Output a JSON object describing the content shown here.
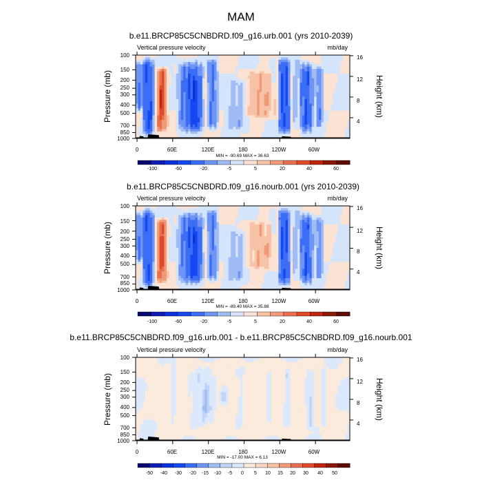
{
  "figure_title": "MAM",
  "chart_data": [
    {
      "type": "heatmap",
      "title": "b.e11.BRCP85C5CNBDRD.f09_g16.urb.001 (yrs 2010-2039)",
      "left_label": "Vertical pressure velocity",
      "right_label": "mb/day",
      "ylabel": "Pressure (mb)",
      "ylabel_right": "Height (km)",
      "x_ticks": [
        "0",
        "60E",
        "120E",
        "180",
        "120W",
        "60W"
      ],
      "y_ticks": [
        "100",
        "150",
        "200",
        "250",
        "300",
        "400",
        "500",
        "700",
        "850",
        "1000"
      ],
      "height_ticks": [
        "16",
        "12",
        "8",
        "4"
      ],
      "stats": "MIN = -90.69   MAX =  36.63",
      "min": -90.69,
      "max": 36.63,
      "colorbar_labels": [
        "-100",
        "-60",
        "-20",
        "-5",
        "5",
        "20",
        "40",
        "60"
      ],
      "colorbar_levels": [
        -100,
        -80,
        -60,
        -40,
        -20,
        -10,
        -5,
        0,
        5,
        10,
        20,
        30,
        40,
        50,
        60
      ],
      "terrain": [
        [
          6,
          14,
          0.6
        ],
        [
          20,
          40,
          1.0
        ],
        [
          245,
          262,
          0.5
        ]
      ],
      "features": [
        {
          "lon0": 10,
          "lon1": 32,
          "amp": -55,
          "y0": 0.0,
          "y1": 1.0,
          "f": 2,
          "w": 0.16
        },
        {
          "lon0": 0,
          "lon1": 12,
          "amp": -35,
          "y0": 0.05,
          "y1": 0.7,
          "f": 3,
          "w": 0.12
        },
        {
          "lon0": 33,
          "lon1": 55,
          "amp": 34,
          "y0": 0.12,
          "y1": 0.95,
          "f": 2,
          "w": 0.1
        },
        {
          "lon0": 38,
          "lon1": 50,
          "amp": 18,
          "y0": 0.35,
          "y1": 0.8,
          "f": 3,
          "w": 0.1
        },
        {
          "lon0": 68,
          "lon1": 118,
          "amp": -40,
          "y0": 0.02,
          "y1": 0.98,
          "f": 3,
          "w": 0.2
        },
        {
          "lon0": 88,
          "lon1": 112,
          "amp": -35,
          "y0": 0.2,
          "y1": 0.95,
          "f": 4,
          "w": 0.15
        },
        {
          "lon0": 118,
          "lon1": 140,
          "amp": -25,
          "y0": 0.02,
          "y1": 0.92,
          "f": 3,
          "w": 0.1
        },
        {
          "lon0": 148,
          "lon1": 195,
          "amp": -10,
          "y0": 0.25,
          "y1": 0.95,
          "f": 2,
          "w": 0.1
        },
        {
          "lon0": 172,
          "lon1": 245,
          "amp": 12,
          "y0": 0.15,
          "y1": 0.8,
          "f": 2,
          "w": 0.1
        },
        {
          "lon0": 210,
          "lon1": 228,
          "amp": 12,
          "y0": 0.42,
          "y1": 0.62,
          "f": 2,
          "w": 0.1
        },
        {
          "lon0": 225,
          "lon1": 238,
          "amp": -8,
          "y0": 0.0,
          "y1": 0.4,
          "f": 1,
          "w": 0.1
        },
        {
          "lon0": 238,
          "lon1": 262,
          "amp": -55,
          "y0": 0.0,
          "y1": 0.98,
          "f": 4,
          "w": 0.15
        },
        {
          "lon0": 262,
          "lon1": 278,
          "amp": -10,
          "y0": 0.0,
          "y1": 0.9,
          "f": 2,
          "w": 0.1
        },
        {
          "lon0": 274,
          "lon1": 300,
          "amp": -45,
          "y0": 0.05,
          "y1": 0.98,
          "f": 3,
          "w": 0.18
        },
        {
          "lon0": 300,
          "lon1": 316,
          "amp": -22,
          "y0": 0.1,
          "y1": 0.9,
          "f": 2,
          "w": 0.1
        }
      ]
    },
    {
      "type": "heatmap",
      "title": "b.e11.BRCP85C5CNBDRD.f09_g16.nourb.001 (yrs 2010-2039)",
      "left_label": "Vertical pressure velocity",
      "right_label": "mb/day",
      "ylabel": "Pressure (mb)",
      "ylabel_right": "Height (km)",
      "x_ticks": [
        "0",
        "60E",
        "120E",
        "180",
        "120W",
        "60W"
      ],
      "y_ticks": [
        "100",
        "150",
        "200",
        "250",
        "300",
        "400",
        "500",
        "700",
        "850",
        "1000"
      ],
      "height_ticks": [
        "16",
        "12",
        "8",
        "4"
      ],
      "stats": "MIN = -89.40   MAX =  35.88",
      "min": -89.4,
      "max": 35.88,
      "colorbar_labels": [
        "-100",
        "-60",
        "-20",
        "-5",
        "5",
        "20",
        "40",
        "60"
      ],
      "colorbar_levels": [
        -100,
        -80,
        -60,
        -40,
        -20,
        -10,
        -5,
        0,
        5,
        10,
        20,
        30,
        40,
        50,
        60
      ],
      "terrain": [
        [
          6,
          14,
          0.6
        ],
        [
          20,
          40,
          1.0
        ],
        [
          245,
          262,
          0.5
        ]
      ],
      "features": [
        {
          "lon0": 10,
          "lon1": 32,
          "amp": -52,
          "y0": 0.0,
          "y1": 1.0,
          "f": 2,
          "w": 0.16
        },
        {
          "lon0": 0,
          "lon1": 12,
          "amp": -33,
          "y0": 0.05,
          "y1": 0.7,
          "f": 3,
          "w": 0.12
        },
        {
          "lon0": 33,
          "lon1": 55,
          "amp": 32,
          "y0": 0.12,
          "y1": 0.95,
          "f": 2,
          "w": 0.1
        },
        {
          "lon0": 38,
          "lon1": 50,
          "amp": 17,
          "y0": 0.35,
          "y1": 0.8,
          "f": 3,
          "w": 0.1
        },
        {
          "lon0": 68,
          "lon1": 118,
          "amp": -38,
          "y0": 0.02,
          "y1": 0.98,
          "f": 3,
          "w": 0.2
        },
        {
          "lon0": 88,
          "lon1": 112,
          "amp": -32,
          "y0": 0.2,
          "y1": 0.95,
          "f": 4,
          "w": 0.15
        },
        {
          "lon0": 118,
          "lon1": 140,
          "amp": -24,
          "y0": 0.02,
          "y1": 0.92,
          "f": 3,
          "w": 0.1
        },
        {
          "lon0": 148,
          "lon1": 195,
          "amp": -10,
          "y0": 0.25,
          "y1": 0.95,
          "f": 2,
          "w": 0.1
        },
        {
          "lon0": 172,
          "lon1": 245,
          "amp": 11,
          "y0": 0.15,
          "y1": 0.8,
          "f": 2,
          "w": 0.1
        },
        {
          "lon0": 210,
          "lon1": 228,
          "amp": 10,
          "y0": 0.42,
          "y1": 0.62,
          "f": 2,
          "w": 0.1
        },
        {
          "lon0": 225,
          "lon1": 238,
          "amp": -8,
          "y0": 0.0,
          "y1": 0.4,
          "f": 1,
          "w": 0.1
        },
        {
          "lon0": 238,
          "lon1": 262,
          "amp": -52,
          "y0": 0.0,
          "y1": 0.98,
          "f": 4,
          "w": 0.15
        },
        {
          "lon0": 262,
          "lon1": 278,
          "amp": -10,
          "y0": 0.0,
          "y1": 0.9,
          "f": 2,
          "w": 0.1
        },
        {
          "lon0": 274,
          "lon1": 300,
          "amp": -43,
          "y0": 0.05,
          "y1": 0.98,
          "f": 3,
          "w": 0.18
        },
        {
          "lon0": 300,
          "lon1": 316,
          "amp": -21,
          "y0": 0.1,
          "y1": 0.9,
          "f": 2,
          "w": 0.1
        }
      ]
    },
    {
      "type": "heatmap",
      "title": "b.e11.BRCP85C5CNBDRD.f09_g16.urb.001 - b.e11.BRCP85C5CNBDRD.f09_g16.nourb.001",
      "left_label": "Vertical pressure velocity",
      "right_label": "mb/day",
      "ylabel": "Pressure (mb)",
      "ylabel_right": "Height (km)",
      "x_ticks": [
        "0",
        "60E",
        "120E",
        "180",
        "120W",
        "60W"
      ],
      "y_ticks": [
        "100",
        "150",
        "200",
        "250",
        "300",
        "400",
        "500",
        "700",
        "850",
        "1000"
      ],
      "height_ticks": [
        "16",
        "12",
        "8",
        "4"
      ],
      "stats": "MIN = -17.00   MAX =  6.13",
      "min": -17.0,
      "max": 6.13,
      "colorbar_labels": [
        "-50",
        "-40",
        "-30",
        "-20",
        "-15",
        "-10",
        "-5",
        "0",
        "5",
        "10",
        "15",
        "20",
        "30",
        "40",
        "50"
      ],
      "colorbar_levels": [
        -50,
        -40,
        -30,
        -20,
        -15,
        -10,
        -5,
        -2.5,
        0,
        2.5,
        5,
        10,
        15,
        20,
        30,
        40,
        50
      ],
      "terrain": [
        [
          6,
          14,
          0.6
        ],
        [
          20,
          40,
          1.0
        ],
        [
          245,
          262,
          0.5
        ]
      ],
      "features": [
        {
          "lon0": 0,
          "lon1": 360,
          "amp": 1.5,
          "y0": 0.0,
          "y1": 1.0,
          "f": 0,
          "w": 0.1
        },
        {
          "lon0": 58,
          "lon1": 68,
          "amp": -3,
          "y0": 0.0,
          "y1": 1.0,
          "f": 1,
          "w": 0.1
        },
        {
          "lon0": 85,
          "lon1": 140,
          "amp": -4.5,
          "y0": 0.05,
          "y1": 0.92,
          "f": 2,
          "w": 0.2
        },
        {
          "lon0": 110,
          "lon1": 130,
          "amp": -5,
          "y0": 0.3,
          "y1": 0.75,
          "f": 2,
          "w": 0.15
        },
        {
          "lon0": 140,
          "lon1": 158,
          "amp": -4.5,
          "y0": 0.3,
          "y1": 0.65,
          "f": 1,
          "w": 0.15
        },
        {
          "lon0": 165,
          "lon1": 185,
          "amp": -3,
          "y0": 0.05,
          "y1": 0.9,
          "f": 2,
          "w": 0.1
        },
        {
          "lon0": 218,
          "lon1": 232,
          "amp": -3,
          "y0": 0.1,
          "y1": 0.85,
          "f": 2,
          "w": 0.1
        },
        {
          "lon0": 248,
          "lon1": 262,
          "amp": -4,
          "y0": 0.1,
          "y1": 0.9,
          "f": 2,
          "w": 0.1
        },
        {
          "lon0": 285,
          "lon1": 300,
          "amp": -4,
          "y0": 0.1,
          "y1": 0.9,
          "f": 2,
          "w": 0.1
        },
        {
          "lon0": 310,
          "lon1": 322,
          "amp": -3,
          "y0": 0.1,
          "y1": 0.85,
          "f": 1,
          "w": 0.1
        }
      ]
    }
  ],
  "colors": {
    "panel_scale": [
      "#0a0a6e",
      "#0e1eb4",
      "#0c32dc",
      "#1448f0",
      "#3c6ef5",
      "#6e95f5",
      "#a0bcf5",
      "#d4e4fb",
      "#fbe2d2",
      "#f7c2a6",
      "#f09a78",
      "#e87050",
      "#df4a28",
      "#c1260c",
      "#8c1806",
      "#5c0c02"
    ],
    "diff_scale": [
      "#0a0a6e",
      "#0e1eb4",
      "#0c32dc",
      "#1448f0",
      "#3c6ef5",
      "#6e95f5",
      "#a0bcf5",
      "#c0d3f8",
      "#dce8fb",
      "#fbebdc",
      "#f8d8c2",
      "#f7c2a6",
      "#f09a78",
      "#e87050",
      "#df4a28",
      "#c1260c",
      "#8c1806",
      "#5c0c02"
    ]
  }
}
